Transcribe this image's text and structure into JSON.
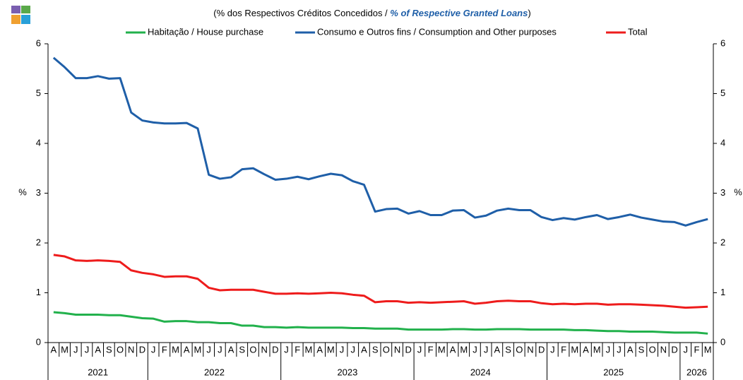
{
  "chart_data": {
    "type": "line",
    "subtitle": [
      "(% dos Respectivos  Créditos Concedidos / ",
      "% of Respective  Granted Loans",
      ")"
    ],
    "ylabel": "%",
    "categories": [
      "A",
      "M",
      "J",
      "J",
      "A",
      "S",
      "O",
      "N",
      "D",
      "J",
      "F",
      "M",
      "A",
      "M",
      "J",
      "J",
      "A",
      "S",
      "O",
      "N",
      "D",
      "J",
      "F",
      "M",
      "A",
      "M",
      "J",
      "J",
      "A",
      "S",
      "O",
      "N",
      "D",
      "J",
      "F",
      "M",
      "A",
      "M",
      "J",
      "J",
      "A",
      "S",
      "O",
      "N",
      "D",
      "J",
      "F",
      "M",
      "A",
      "M",
      "J",
      "J",
      "A",
      "S",
      "O",
      "N",
      "D",
      "J",
      "F",
      "M"
    ],
    "years": [
      "2021",
      "2022",
      "2023",
      "2024",
      "2025",
      "2026"
    ],
    "series": [
      {
        "name": "Habitação / House purchase",
        "color": "#22b14c",
        "values": [
          0.61,
          0.59,
          0.56,
          0.56,
          0.56,
          0.55,
          0.55,
          0.52,
          0.49,
          0.48,
          0.42,
          0.43,
          0.43,
          0.41,
          0.41,
          0.39,
          0.39,
          0.34,
          0.34,
          0.31,
          0.31,
          0.3,
          0.31,
          0.3,
          0.3,
          0.3,
          0.3,
          0.29,
          0.29,
          0.28,
          0.28,
          0.28,
          0.26,
          0.26,
          0.26,
          0.26,
          0.27,
          0.27,
          0.26,
          0.26,
          0.27,
          0.27,
          0.27,
          0.26,
          0.26,
          0.26,
          0.26,
          0.25,
          0.25,
          0.24,
          0.23,
          0.23,
          0.22,
          0.22,
          0.22,
          0.21,
          0.2,
          0.2,
          0.2,
          0.18
        ]
      },
      {
        "name": "Consumo e Outros fins / Consumption and Other purposes",
        "color": "#1f5fa8",
        "values": [
          5.72,
          5.53,
          5.31,
          5.31,
          5.35,
          5.3,
          5.31,
          4.62,
          4.46,
          4.42,
          4.4,
          4.4,
          4.41,
          4.3,
          3.37,
          3.29,
          3.32,
          3.48,
          3.5,
          3.38,
          3.27,
          3.29,
          3.33,
          3.28,
          3.34,
          3.39,
          3.36,
          3.24,
          3.17,
          2.63,
          2.68,
          2.69,
          2.59,
          2.64,
          2.56,
          2.56,
          2.65,
          2.66,
          2.51,
          2.55,
          2.65,
          2.69,
          2.66,
          2.66,
          2.52,
          2.46,
          2.5,
          2.47,
          2.52,
          2.56,
          2.48,
          2.52,
          2.57,
          2.51,
          2.47,
          2.43,
          2.42,
          2.35,
          2.42,
          2.48
        ]
      },
      {
        "name": "Total",
        "color": "#ee1c1c",
        "values": [
          1.76,
          1.73,
          1.65,
          1.64,
          1.65,
          1.64,
          1.62,
          1.45,
          1.4,
          1.37,
          1.32,
          1.33,
          1.33,
          1.28,
          1.1,
          1.05,
          1.06,
          1.06,
          1.06,
          1.02,
          0.98,
          0.98,
          0.99,
          0.98,
          0.99,
          1.0,
          0.99,
          0.96,
          0.94,
          0.81,
          0.83,
          0.83,
          0.8,
          0.81,
          0.8,
          0.81,
          0.82,
          0.83,
          0.78,
          0.8,
          0.83,
          0.84,
          0.83,
          0.83,
          0.79,
          0.77,
          0.78,
          0.77,
          0.78,
          0.78,
          0.76,
          0.77,
          0.77,
          0.76,
          0.75,
          0.74,
          0.72,
          0.7,
          0.71,
          0.72
        ]
      }
    ],
    "ylim": [
      0,
      6
    ],
    "yticks": [
      0,
      1,
      2,
      3,
      4,
      5,
      6
    ],
    "grid": false
  }
}
